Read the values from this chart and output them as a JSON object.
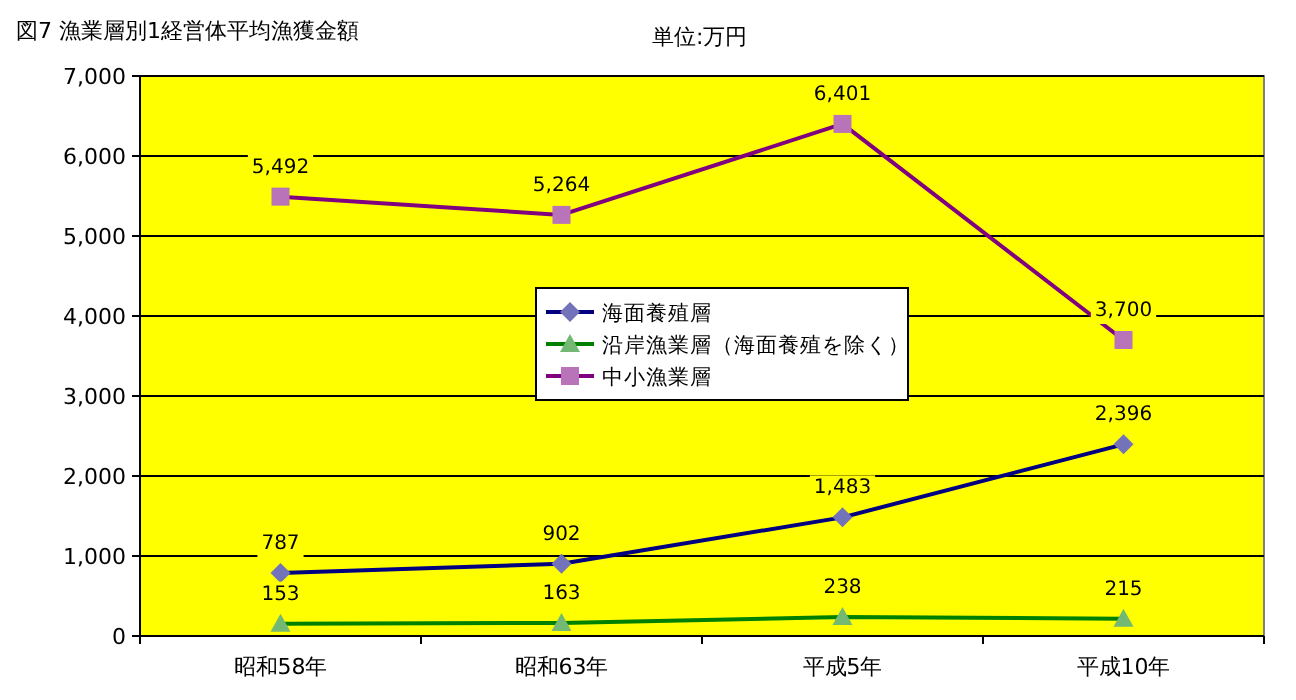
{
  "chart_data": {
    "type": "line",
    "title": "図7  漁業層別1経営体平均漁獲金額",
    "subtitle": "単位:万円",
    "categories": [
      "昭和58年",
      "昭和63年",
      "平成5年",
      "平成10年"
    ],
    "series": [
      {
        "name": "海面養殖層",
        "color": "#000080",
        "marker": "diamond",
        "values": [
          787,
          902,
          1483,
          2396
        ],
        "value_labels": [
          "787",
          "902",
          "1,483",
          "2,396"
        ]
      },
      {
        "name": "沿岸漁業層（海面養殖を除く）",
        "color": "#008000",
        "marker": "triangle",
        "values": [
          153,
          163,
          238,
          215
        ],
        "value_labels": [
          "153",
          "163",
          "238",
          "215"
        ]
      },
      {
        "name": "中小漁業層",
        "color": "#800080",
        "marker": "square",
        "values": [
          5492,
          5264,
          6401,
          3700
        ],
        "value_labels": [
          "5,492",
          "5,264",
          "6,401",
          "3,700"
        ]
      }
    ],
    "ylim": [
      0,
      7000
    ],
    "yticks": [
      {
        "value": 0,
        "label": "0"
      },
      {
        "value": 1000,
        "label": "1,000"
      },
      {
        "value": 2000,
        "label": "2,000"
      },
      {
        "value": 3000,
        "label": "3,000"
      },
      {
        "value": 4000,
        "label": "4,000"
      },
      {
        "value": 5000,
        "label": "5,000"
      },
      {
        "value": 6000,
        "label": "6,000"
      },
      {
        "value": 7000,
        "label": "7,000"
      }
    ],
    "grid": "y",
    "legend": "center"
  }
}
